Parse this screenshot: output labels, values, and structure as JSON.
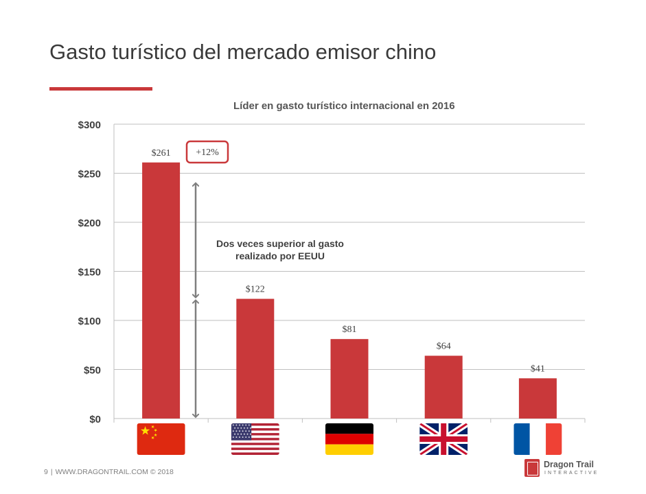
{
  "slide": {
    "title": "Gasto turístico del mercado emisor chino",
    "footer": {
      "page_number": "9",
      "separator": "|",
      "site": "WWW.DRAGONTRAIL.COM © 2018"
    },
    "logo": {
      "name": "Dragon Trail",
      "sub": "INTERACTIVE"
    }
  },
  "colors": {
    "bar": "#c9383a",
    "accent": "#c9383a",
    "grid": "#bfbfbf",
    "arrow": "#7f7f7f"
  },
  "chart_data": {
    "type": "bar",
    "title": "Líder en gasto turístico internacional en 2016",
    "categories": [
      "China",
      "EEUU",
      "Alemania",
      "Reino Unido",
      "Francia"
    ],
    "category_icons": [
      "china-flag-icon",
      "usa-flag-icon",
      "germany-flag-icon",
      "uk-flag-icon",
      "france-flag-icon"
    ],
    "values": [
      261,
      122,
      81,
      64,
      41
    ],
    "data_labels": [
      "$261",
      "$122",
      "$81",
      "$64",
      "$41"
    ],
    "ylim": [
      0,
      300
    ],
    "yticks": [
      0,
      50,
      100,
      150,
      200,
      250,
      300
    ],
    "ytick_labels": [
      "$0",
      "$50",
      "$100",
      "$150",
      "$200",
      "$250",
      "$300"
    ],
    "grid": true,
    "legend": "none",
    "annotations": {
      "growth_badge": "+12%",
      "double_arrow_text_line1": "Dos veces superior al gasto",
      "double_arrow_text_line2": "realizado por EEUU"
    }
  }
}
